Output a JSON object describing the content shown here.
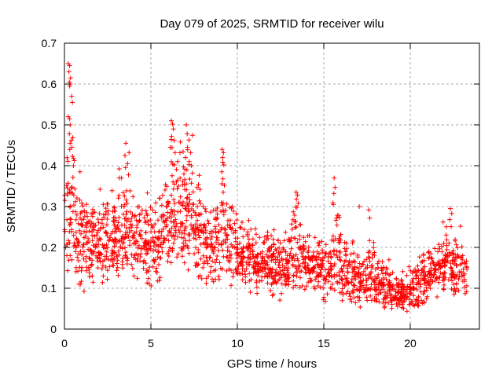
{
  "chart_data": {
    "type": "scatter",
    "title": "Day 079 of 2025, SRMTID for receiver wilu",
    "xlabel": "GPS time / hours",
    "ylabel": "SRMTID / TECUs",
    "xlim": [
      0,
      24
    ],
    "ylim": [
      0,
      0.7
    ],
    "xticks": [
      {
        "v": 0,
        "label": "0"
      },
      {
        "v": 5,
        "label": "5"
      },
      {
        "v": 10,
        "label": "10"
      },
      {
        "v": 15,
        "label": "15"
      },
      {
        "v": 20,
        "label": "20"
      }
    ],
    "yticks": [
      {
        "v": 0.0,
        "label": "0"
      },
      {
        "v": 0.1,
        "label": "0.1"
      },
      {
        "v": 0.2,
        "label": "0.2"
      },
      {
        "v": 0.3,
        "label": "0.3"
      },
      {
        "v": 0.4,
        "label": "0.4"
      },
      {
        "v": 0.5,
        "label": "0.5"
      },
      {
        "v": 0.6,
        "label": "0.6"
      },
      {
        "v": 0.7,
        "label": "0.7"
      }
    ],
    "grid": true,
    "legend": "none",
    "marker": {
      "shape": "plus",
      "color": "#ff0000",
      "size": 7
    },
    "colors": {
      "axis": "#000000",
      "grid": "#aaaaaa",
      "text": "#000000",
      "background": "#ffffff"
    },
    "seed": 2025079,
    "cloud_bins": [
      [
        0.0,
        0.3,
        22,
        0.3,
        0.12,
        0.12,
        0.62
      ],
      [
        0.3,
        0.6,
        28,
        0.27,
        0.1,
        0.1,
        0.58
      ],
      [
        0.6,
        1.0,
        40,
        0.22,
        0.06,
        0.07,
        0.38
      ],
      [
        1.0,
        1.5,
        48,
        0.21,
        0.05,
        0.09,
        0.33
      ],
      [
        1.5,
        2.0,
        48,
        0.22,
        0.05,
        0.1,
        0.35
      ],
      [
        2.0,
        2.5,
        48,
        0.23,
        0.05,
        0.11,
        0.36
      ],
      [
        2.5,
        3.0,
        48,
        0.22,
        0.05,
        0.1,
        0.34
      ],
      [
        3.0,
        3.5,
        48,
        0.24,
        0.06,
        0.12,
        0.4
      ],
      [
        3.5,
        4.0,
        44,
        0.25,
        0.07,
        0.1,
        0.44
      ],
      [
        4.0,
        4.5,
        44,
        0.22,
        0.06,
        0.08,
        0.35
      ],
      [
        4.5,
        5.0,
        48,
        0.22,
        0.06,
        0.09,
        0.35
      ],
      [
        5.0,
        5.5,
        44,
        0.2,
        0.05,
        0.1,
        0.32
      ],
      [
        5.5,
        6.0,
        44,
        0.24,
        0.06,
        0.12,
        0.38
      ],
      [
        6.0,
        6.5,
        48,
        0.28,
        0.07,
        0.15,
        0.48
      ],
      [
        6.5,
        7.0,
        48,
        0.28,
        0.07,
        0.15,
        0.46
      ],
      [
        7.0,
        7.5,
        48,
        0.28,
        0.07,
        0.14,
        0.48
      ],
      [
        7.5,
        8.0,
        44,
        0.24,
        0.06,
        0.12,
        0.38
      ],
      [
        8.0,
        8.5,
        44,
        0.21,
        0.05,
        0.1,
        0.31
      ],
      [
        8.5,
        9.0,
        44,
        0.2,
        0.05,
        0.1,
        0.3
      ],
      [
        9.0,
        9.4,
        32,
        0.25,
        0.08,
        0.12,
        0.42
      ],
      [
        9.4,
        10.0,
        48,
        0.2,
        0.05,
        0.1,
        0.3
      ],
      [
        10.0,
        10.5,
        48,
        0.18,
        0.04,
        0.09,
        0.28
      ],
      [
        10.5,
        11.0,
        48,
        0.18,
        0.04,
        0.09,
        0.27
      ],
      [
        11.0,
        11.5,
        48,
        0.17,
        0.04,
        0.08,
        0.26
      ],
      [
        11.5,
        12.0,
        48,
        0.17,
        0.04,
        0.08,
        0.26
      ],
      [
        12.0,
        12.5,
        48,
        0.16,
        0.04,
        0.07,
        0.25
      ],
      [
        12.5,
        13.0,
        48,
        0.15,
        0.04,
        0.05,
        0.24
      ],
      [
        13.0,
        13.6,
        44,
        0.2,
        0.06,
        0.1,
        0.32
      ],
      [
        13.6,
        14.0,
        36,
        0.17,
        0.04,
        0.09,
        0.26
      ],
      [
        14.0,
        14.5,
        44,
        0.16,
        0.04,
        0.08,
        0.24
      ],
      [
        14.5,
        15.0,
        44,
        0.15,
        0.04,
        0.07,
        0.23
      ],
      [
        15.0,
        15.5,
        40,
        0.14,
        0.04,
        0.06,
        0.22
      ],
      [
        15.5,
        16.0,
        40,
        0.17,
        0.06,
        0.08,
        0.35
      ],
      [
        16.0,
        16.5,
        44,
        0.14,
        0.04,
        0.06,
        0.24
      ],
      [
        16.5,
        17.0,
        44,
        0.13,
        0.04,
        0.06,
        0.26
      ],
      [
        17.0,
        17.5,
        44,
        0.12,
        0.03,
        0.05,
        0.21
      ],
      [
        17.5,
        18.0,
        44,
        0.13,
        0.04,
        0.05,
        0.27
      ],
      [
        18.0,
        18.5,
        44,
        0.11,
        0.03,
        0.05,
        0.19
      ],
      [
        18.5,
        19.0,
        44,
        0.1,
        0.03,
        0.04,
        0.17
      ],
      [
        19.0,
        19.5,
        44,
        0.08,
        0.02,
        0.04,
        0.14
      ],
      [
        19.5,
        20.0,
        44,
        0.09,
        0.03,
        0.04,
        0.16
      ],
      [
        20.0,
        20.5,
        44,
        0.1,
        0.03,
        0.05,
        0.18
      ],
      [
        20.5,
        21.0,
        44,
        0.12,
        0.03,
        0.06,
        0.2
      ],
      [
        21.0,
        21.5,
        44,
        0.13,
        0.03,
        0.07,
        0.21
      ],
      [
        21.5,
        22.0,
        44,
        0.14,
        0.04,
        0.07,
        0.24
      ],
      [
        22.0,
        22.5,
        44,
        0.17,
        0.05,
        0.09,
        0.29
      ],
      [
        22.5,
        23.0,
        44,
        0.15,
        0.04,
        0.08,
        0.25
      ],
      [
        23.0,
        23.3,
        18,
        0.13,
        0.04,
        0.06,
        0.2
      ]
    ],
    "outlier_points": [
      [
        0.22,
        0.65
      ],
      [
        0.3,
        0.645
      ],
      [
        0.26,
        0.63
      ],
      [
        0.35,
        0.615
      ],
      [
        0.28,
        0.605
      ],
      [
        0.33,
        0.6
      ],
      [
        0.3,
        0.595
      ],
      [
        0.42,
        0.57
      ],
      [
        0.46,
        0.555
      ],
      [
        0.22,
        0.52
      ],
      [
        0.3,
        0.515
      ],
      [
        0.33,
        0.5
      ],
      [
        0.28,
        0.478
      ],
      [
        0.4,
        0.462
      ],
      [
        0.31,
        0.44
      ],
      [
        0.47,
        0.423
      ],
      [
        0.52,
        0.4
      ],
      [
        0.9,
        0.385
      ],
      [
        3.55,
        0.455
      ],
      [
        3.5,
        0.425
      ],
      [
        3.65,
        0.405
      ],
      [
        3.3,
        0.37
      ],
      [
        6.18,
        0.51
      ],
      [
        6.25,
        0.502
      ],
      [
        6.3,
        0.49
      ],
      [
        6.2,
        0.472
      ],
      [
        6.35,
        0.462
      ],
      [
        6.12,
        0.445
      ],
      [
        6.4,
        0.432
      ],
      [
        6.55,
        0.41
      ],
      [
        7.05,
        0.5
      ],
      [
        7.1,
        0.478
      ],
      [
        7.2,
        0.463
      ],
      [
        7.12,
        0.445
      ],
      [
        7.3,
        0.432
      ],
      [
        7.0,
        0.42
      ],
      [
        7.22,
        0.41
      ],
      [
        7.35,
        0.4
      ],
      [
        7.08,
        0.39
      ],
      [
        7.4,
        0.382
      ],
      [
        9.12,
        0.44
      ],
      [
        9.2,
        0.432
      ],
      [
        9.15,
        0.42
      ],
      [
        9.22,
        0.402
      ],
      [
        9.1,
        0.385
      ],
      [
        9.25,
        0.352
      ],
      [
        9.18,
        0.335
      ],
      [
        13.4,
        0.335
      ],
      [
        13.48,
        0.328
      ],
      [
        13.42,
        0.318
      ],
      [
        13.52,
        0.308
      ],
      [
        13.45,
        0.298
      ],
      [
        15.6,
        0.37
      ],
      [
        15.65,
        0.347
      ],
      [
        15.58,
        0.332
      ],
      [
        15.55,
        0.305
      ],
      [
        17.05,
        0.3
      ],
      [
        17.6,
        0.292
      ],
      [
        17.66,
        0.272
      ],
      [
        21.9,
        0.262
      ],
      [
        22.32,
        0.295
      ],
      [
        22.4,
        0.283
      ],
      [
        22.28,
        0.268
      ],
      [
        22.9,
        0.252
      ]
    ]
  }
}
